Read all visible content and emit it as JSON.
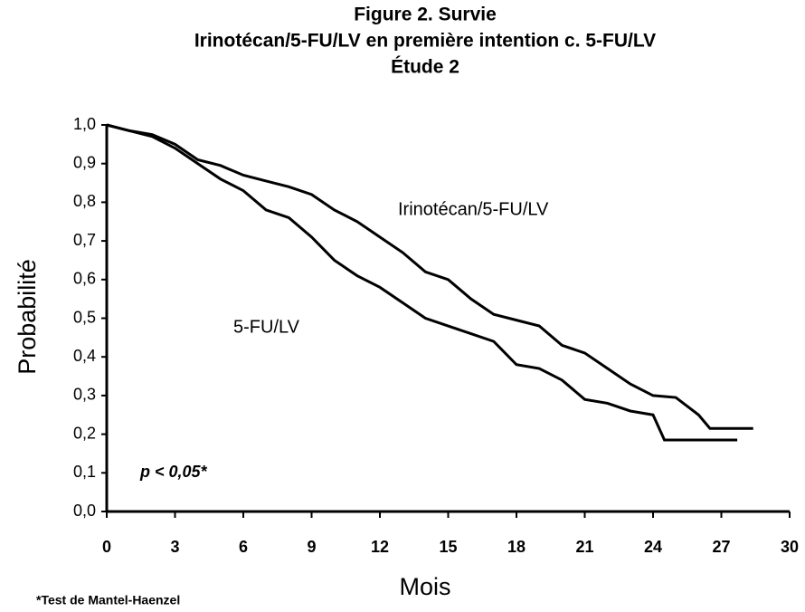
{
  "chart_data": {
    "type": "line",
    "title": [
      "Figure 2. Survie",
      "Irinotécan/5-FU/LV en première intention c. 5-FU/LV",
      "Étude 2"
    ],
    "x_label": "Mois",
    "y_label": "Probabilité",
    "annotations": [
      "p < 0,05*",
      "*Test de Mantel-Haenzel"
    ],
    "xlim": [
      0,
      30
    ],
    "ylim": [
      0,
      1
    ],
    "xticks": [
      0,
      3,
      6,
      9,
      12,
      15,
      18,
      21,
      24,
      27,
      30
    ],
    "yticks": [
      {
        "value": 0,
        "label": "0,0"
      },
      {
        "value": 0.1,
        "label": "0,1"
      },
      {
        "value": 0.2,
        "label": "0,2"
      },
      {
        "value": 0.3,
        "label": "0,3"
      },
      {
        "value": 0.4,
        "label": "0,4"
      },
      {
        "value": 0.5,
        "label": "0,5"
      },
      {
        "value": 0.6,
        "label": "0,6"
      },
      {
        "value": 0.7,
        "label": "0,7"
      },
      {
        "value": 0.8,
        "label": "0,8"
      },
      {
        "value": 0.9,
        "label": "0,9"
      },
      {
        "value": 1,
        "label": "1,0"
      }
    ],
    "series": [
      {
        "name": "Irinotécan/5-FU/LV",
        "color": "#000000",
        "x": [
          0,
          1,
          2,
          3,
          4,
          5,
          6,
          7,
          8,
          9,
          10,
          11,
          12,
          13,
          14,
          15,
          16,
          17,
          18,
          19,
          20,
          21,
          22,
          23,
          24,
          25,
          26,
          26.5,
          28.4
        ],
        "values": [
          1.0,
          0.985,
          0.975,
          0.95,
          0.91,
          0.895,
          0.87,
          0.855,
          0.84,
          0.82,
          0.78,
          0.75,
          0.71,
          0.67,
          0.62,
          0.6,
          0.55,
          0.51,
          0.495,
          0.48,
          0.43,
          0.41,
          0.37,
          0.33,
          0.3,
          0.295,
          0.25,
          0.215,
          0.215
        ]
      },
      {
        "name": "5-FU/LV",
        "color": "#000000",
        "x": [
          0,
          1,
          2,
          3,
          4,
          5,
          6,
          7,
          8,
          9,
          10,
          11,
          12,
          13,
          14,
          15,
          16,
          17,
          18,
          19,
          20,
          21,
          22,
          23,
          24,
          24.5,
          27.7
        ],
        "values": [
          1.0,
          0.985,
          0.97,
          0.94,
          0.9,
          0.86,
          0.83,
          0.78,
          0.76,
          0.71,
          0.65,
          0.61,
          0.58,
          0.54,
          0.5,
          0.48,
          0.46,
          0.44,
          0.38,
          0.37,
          0.34,
          0.29,
          0.28,
          0.26,
          0.25,
          0.185,
          0.185
        ]
      }
    ]
  }
}
